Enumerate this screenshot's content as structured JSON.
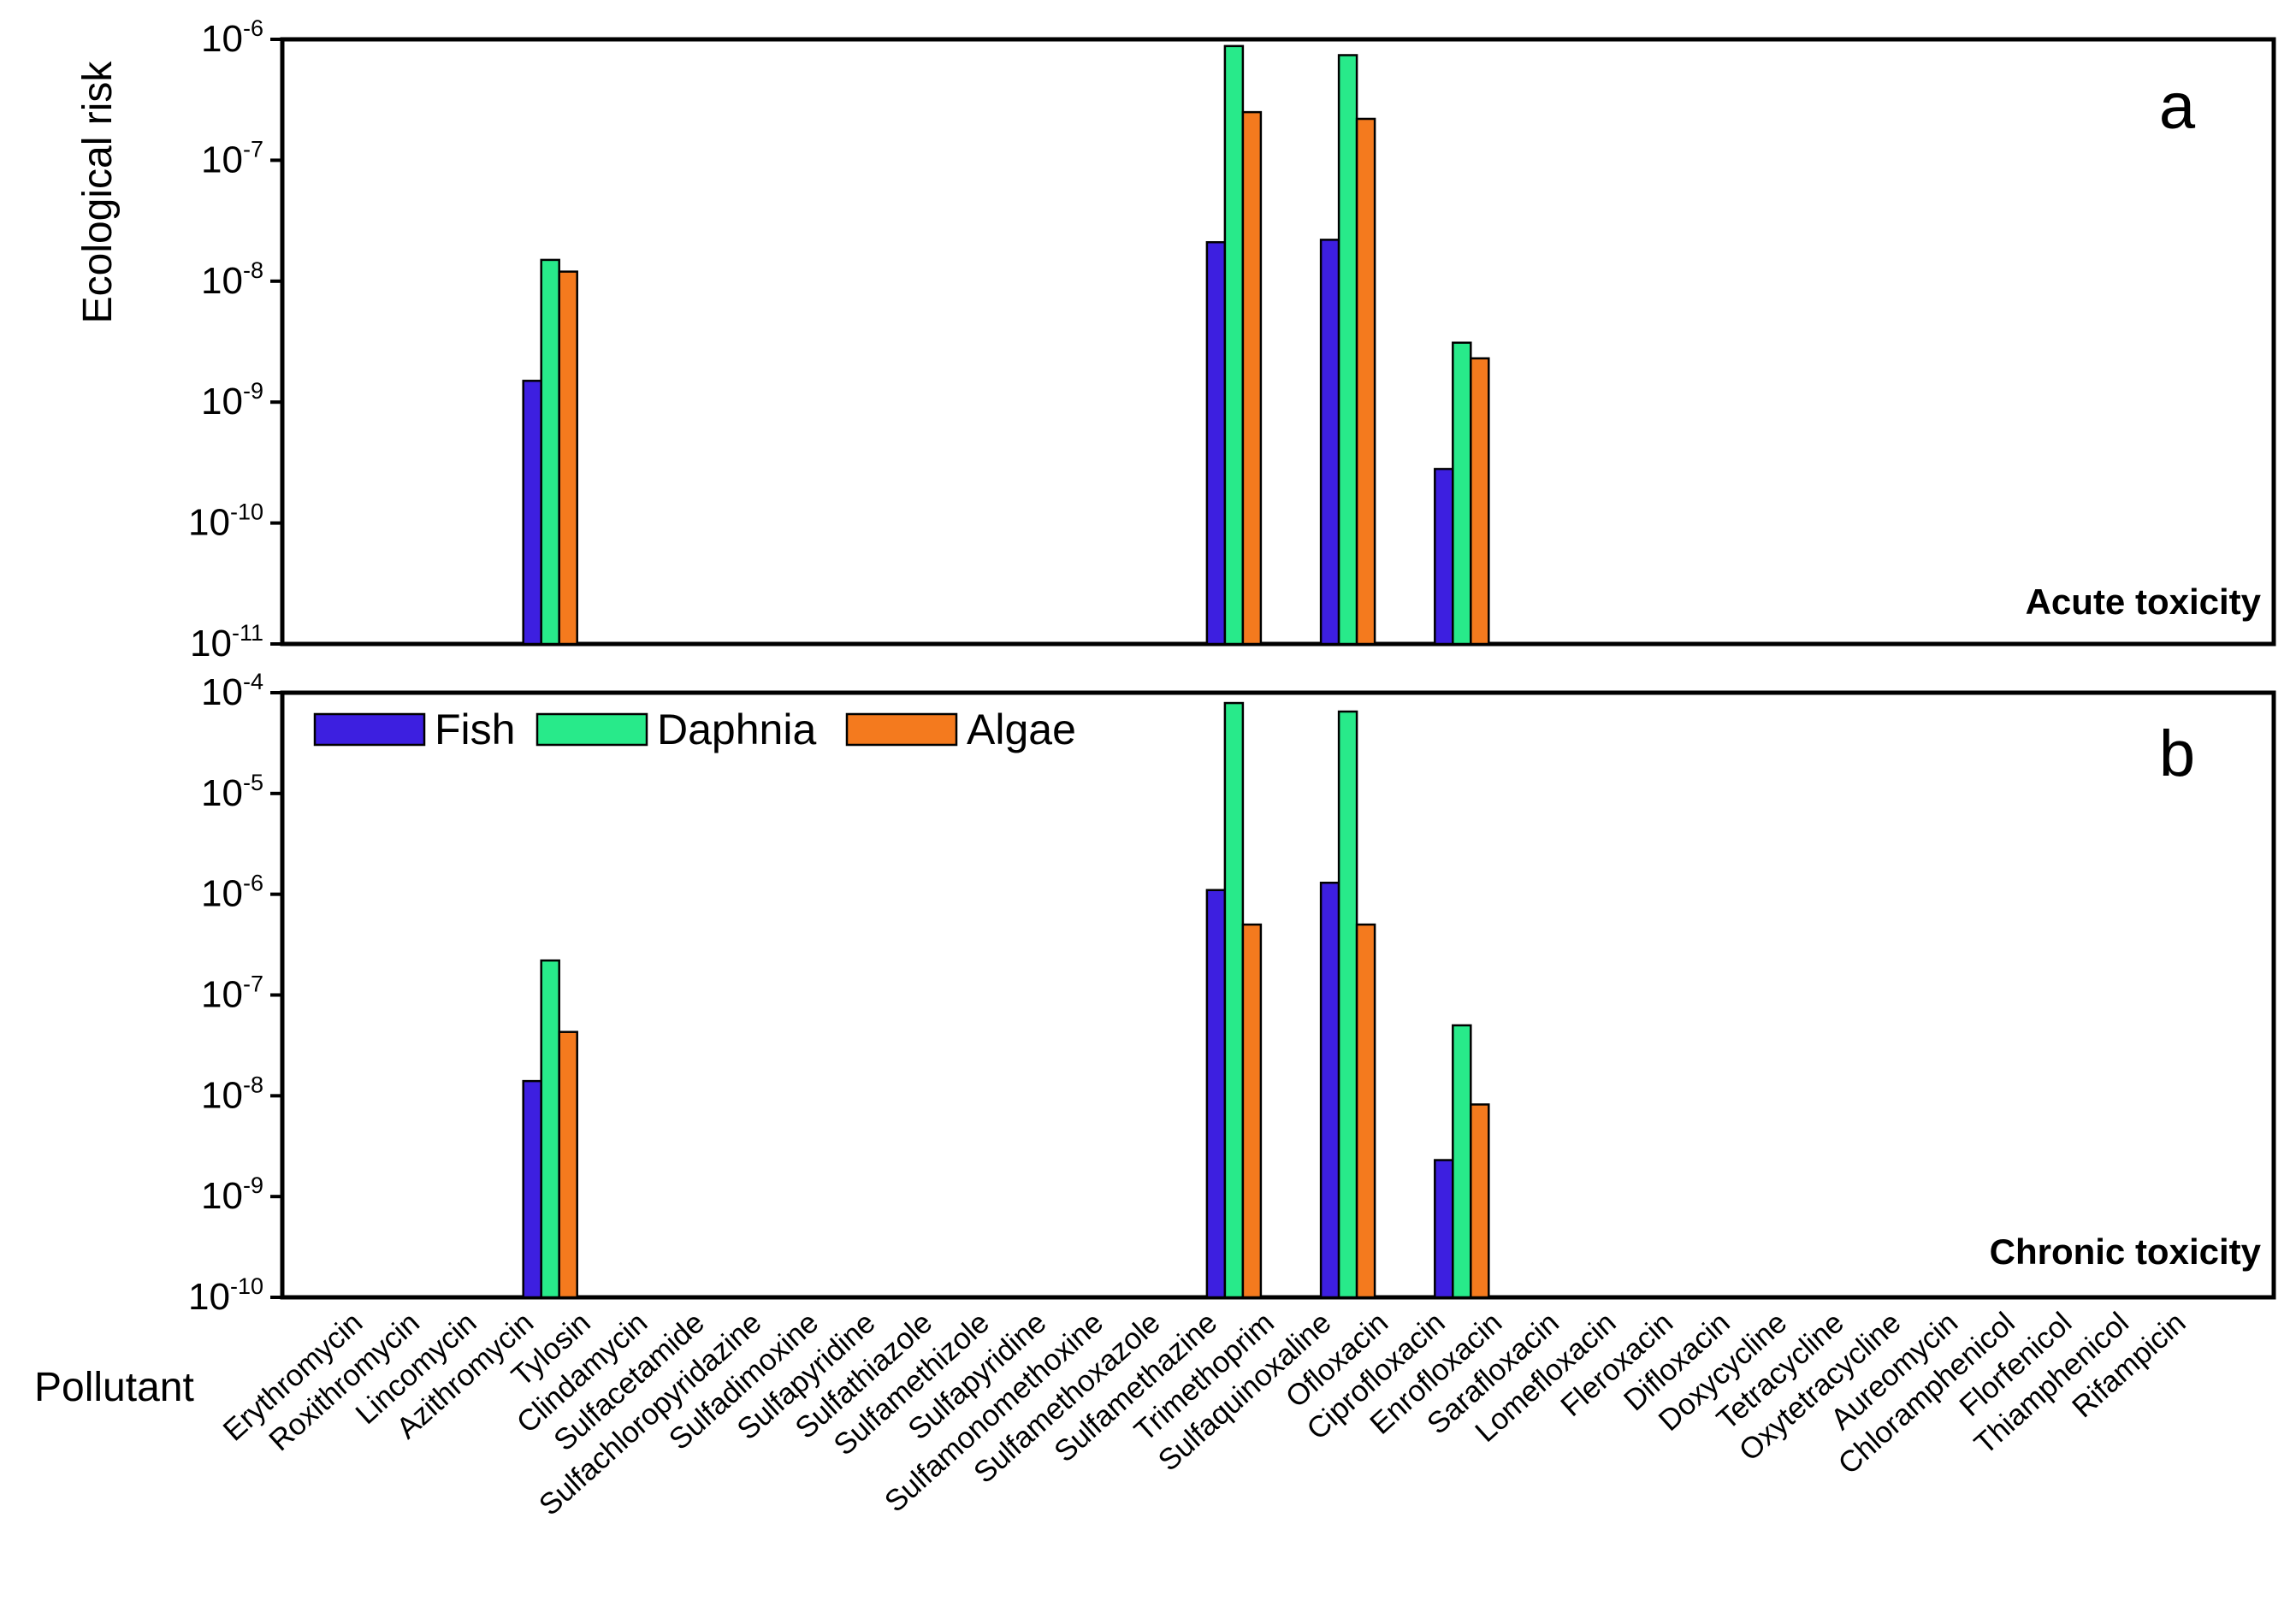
{
  "chart_data": [
    {
      "type": "bar",
      "panel_letter": "a",
      "corner_label": "Acute toxicity",
      "ylabel": "Ecological risk",
      "xlabel": "Pollutant",
      "yscale": "log",
      "ylim": [
        1e-11,
        1e-06
      ],
      "yticks": [
        {
          "base": "10",
          "exp": "-11"
        },
        {
          "base": "10",
          "exp": "-10"
        },
        {
          "base": "10",
          "exp": "-9"
        },
        {
          "base": "10",
          "exp": "-8"
        },
        {
          "base": "10",
          "exp": "-7"
        },
        {
          "base": "10",
          "exp": "-6"
        }
      ],
      "categories": [
        "Erythromycin",
        "Roxithromycin",
        "Lincomycin",
        "Azithromycin",
        "Tylosin",
        "Clindamycin",
        "Sulfacetamide",
        "Sulfachloropyridazine",
        "Sulfadimoxine",
        "Sulfapyridine",
        "Sulfathiazole",
        "Sulfamethizole",
        "Sulfapyridine",
        "Sulfamonomethoxine",
        "Sulfamethoxazole",
        "Sulfamethazine",
        "Trimethoprim",
        "Sulfaquinoxaline",
        "Ofloxacin",
        "Ciprofloxacin",
        "Enrofloxacin",
        "Sarafloxacin",
        "Lomefloxacin",
        "Fleroxacin",
        "Difloxacin",
        "Doxycycline",
        "Tetracycline",
        "Oxytetracycline",
        "Aureomycin",
        "Chloramphenicol",
        "Florfenicol",
        "Thiamphenicol",
        "Rifampicin"
      ],
      "series": [
        {
          "name": "Fish",
          "color": "#3d1fe0",
          "values": [
            null,
            null,
            1.5e-09,
            null,
            null,
            null,
            null,
            null,
            null,
            null,
            null,
            null,
            null,
            null,
            2.1e-08,
            null,
            2.2e-08,
            null,
            2.8e-10,
            null,
            null,
            null,
            null,
            null,
            null,
            null,
            null,
            null,
            null,
            null,
            null,
            null,
            null
          ]
        },
        {
          "name": "Daphnia",
          "color": "#28ea8a",
          "values": [
            null,
            null,
            1.5e-08,
            null,
            null,
            null,
            null,
            null,
            null,
            null,
            null,
            null,
            null,
            null,
            8.8e-07,
            null,
            7.4e-07,
            null,
            3.1e-09,
            null,
            null,
            null,
            null,
            null,
            null,
            null,
            null,
            null,
            null,
            null,
            null,
            null,
            null
          ]
        },
        {
          "name": "Algae",
          "color": "#f47a1e",
          "values": [
            null,
            null,
            1.2e-08,
            null,
            null,
            null,
            null,
            null,
            null,
            null,
            null,
            null,
            null,
            null,
            2.5e-07,
            null,
            2.2e-07,
            null,
            2.3e-09,
            null,
            null,
            null,
            null,
            null,
            null,
            null,
            null,
            null,
            null,
            null,
            null,
            null,
            null
          ]
        }
      ]
    },
    {
      "type": "bar",
      "panel_letter": "b",
      "corner_label": "Chronic toxicity",
      "yscale": "log",
      "ylim": [
        1e-10,
        0.0001
      ],
      "legend": "top-left",
      "yticks": [
        {
          "base": "10",
          "exp": "-10"
        },
        {
          "base": "10",
          "exp": "-9"
        },
        {
          "base": "10",
          "exp": "-8"
        },
        {
          "base": "10",
          "exp": "-7"
        },
        {
          "base": "10",
          "exp": "-6"
        },
        {
          "base": "10",
          "exp": "-5"
        },
        {
          "base": "10",
          "exp": "-4"
        }
      ],
      "categories": [
        "Erythromycin",
        "Roxithromycin",
        "Lincomycin",
        "Azithromycin",
        "Tylosin",
        "Clindamycin",
        "Sulfacetamide",
        "Sulfachloropyridazine",
        "Sulfadimoxine",
        "Sulfapyridine",
        "Sulfathiazole",
        "Sulfamethizole",
        "Sulfapyridine",
        "Sulfamonomethoxine",
        "Sulfamethoxazole",
        "Sulfamethazine",
        "Trimethoprim",
        "Sulfaquinoxaline",
        "Ofloxacin",
        "Ciprofloxacin",
        "Enrofloxacin",
        "Sarafloxacin",
        "Lomefloxacin",
        "Fleroxacin",
        "Difloxacin",
        "Doxycycline",
        "Tetracycline",
        "Oxytetracycline",
        "Aureomycin",
        "Chloramphenicol",
        "Florfenicol",
        "Thiamphenicol",
        "Rifampicin"
      ],
      "series": [
        {
          "name": "Fish",
          "color": "#3d1fe0",
          "values": [
            null,
            null,
            1.4e-08,
            null,
            null,
            null,
            null,
            null,
            null,
            null,
            null,
            null,
            null,
            null,
            1.1e-06,
            null,
            1.3e-06,
            null,
            2.3e-09,
            null,
            null,
            null,
            null,
            null,
            null,
            null,
            null,
            null,
            null,
            null,
            null,
            null,
            null
          ]
        },
        {
          "name": "Daphnia",
          "color": "#28ea8a",
          "values": [
            null,
            null,
            2.2e-07,
            null,
            null,
            null,
            null,
            null,
            null,
            null,
            null,
            null,
            null,
            null,
            7.9e-05,
            null,
            6.5e-05,
            null,
            5e-08,
            null,
            null,
            null,
            null,
            null,
            null,
            null,
            null,
            null,
            null,
            null,
            null,
            null,
            null
          ]
        },
        {
          "name": "Algae",
          "color": "#f47a1e",
          "values": [
            null,
            null,
            4.3e-08,
            null,
            null,
            null,
            null,
            null,
            null,
            null,
            null,
            null,
            null,
            null,
            5e-07,
            null,
            5e-07,
            null,
            8.2e-09,
            null,
            null,
            null,
            null,
            null,
            null,
            null,
            null,
            null,
            null,
            null,
            null,
            null,
            null
          ]
        }
      ]
    }
  ]
}
